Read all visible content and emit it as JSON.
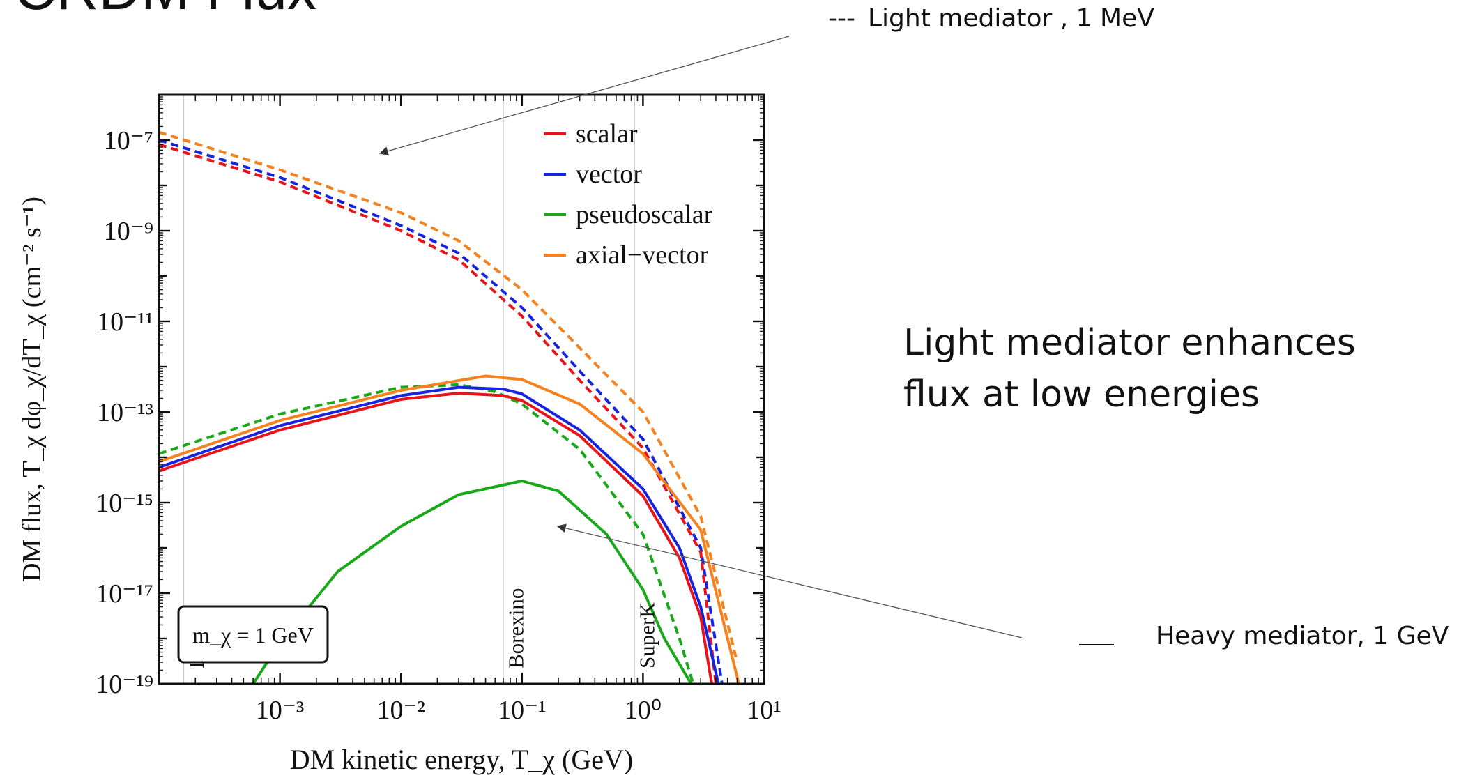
{
  "slide": {
    "title": "CRDM Flux",
    "light_note": {
      "marker": "---",
      "text": "Light mediator , 1 MeV"
    },
    "heavy_note": {
      "text": "Heavy mediator, 1 GeV"
    },
    "callout": [
      "Light mediator enhances",
      "flux at low energies"
    ]
  },
  "chart_data": {
    "type": "line",
    "x_scale": "log",
    "y_scale": "log",
    "xlim": [
      0.0001,
      10
    ],
    "ylim": [
      1e-19,
      1e-06
    ],
    "xlabel": "DM kinetic energy, T_χ (GeV)",
    "ylabel": "DM flux, T_χ dφ_χ/dT_χ (cm⁻² s⁻¹)",
    "x_ticks": [
      {
        "value": 0.001,
        "label": "10⁻³"
      },
      {
        "value": 0.01,
        "label": "10⁻²"
      },
      {
        "value": 0.1,
        "label": "10⁻¹"
      },
      {
        "value": 1,
        "label": "10⁰"
      },
      {
        "value": 10,
        "label": "10¹"
      }
    ],
    "y_ticks": [
      {
        "value": 1e-07,
        "label": "10⁻⁷"
      },
      {
        "value": 1e-09,
        "label": "10⁻⁹"
      },
      {
        "value": 1e-11,
        "label": "10⁻¹¹"
      },
      {
        "value": 1e-13,
        "label": "10⁻¹³"
      },
      {
        "value": 1e-15,
        "label": "10⁻¹⁵"
      },
      {
        "value": 1e-17,
        "label": "10⁻¹⁷"
      },
      {
        "value": 1e-19,
        "label": "10⁻¹⁹"
      }
    ],
    "legend": {
      "position": "top-right",
      "entries": [
        {
          "name": "scalar",
          "color": "#e8141c"
        },
        {
          "name": "vector",
          "color": "#1424e0"
        },
        {
          "name": "pseudoscalar",
          "color": "#18a818"
        },
        {
          "name": "axial−vector",
          "color": "#f5821e"
        }
      ]
    },
    "mass_label": "m_χ = 1 GeV",
    "thresholds": [
      {
        "name": "LZ",
        "x": 0.00016
      },
      {
        "name": "Borexino",
        "x": 0.07
      },
      {
        "name": "SuperK",
        "x": 0.85
      }
    ],
    "series": [
      {
        "mediator": "light",
        "coupling": "axial-vector",
        "color": "#f5821e",
        "dash": true,
        "points": [
          [
            0.0001,
            1.5e-07
          ],
          [
            0.001,
            2.2e-08
          ],
          [
            0.01,
            2.5e-09
          ],
          [
            0.03,
            6e-10
          ],
          [
            0.1,
            5e-11
          ],
          [
            0.3,
            2.6e-12
          ],
          [
            1,
            1e-13
          ],
          [
            3,
            5e-16
          ],
          [
            6,
            3e-19
          ]
        ]
      },
      {
        "mediator": "light",
        "coupling": "vector",
        "color": "#1424e0",
        "dash": true,
        "points": [
          [
            0.0001,
            1e-07
          ],
          [
            0.001,
            1.5e-08
          ],
          [
            0.01,
            1.3e-09
          ],
          [
            0.03,
            3.2e-10
          ],
          [
            0.1,
            2e-11
          ],
          [
            0.3,
            8e-13
          ],
          [
            1,
            2.5e-14
          ],
          [
            3,
            1e-16
          ],
          [
            4.5,
            1e-19
          ]
        ]
      },
      {
        "mediator": "light",
        "coupling": "scalar",
        "color": "#e8141c",
        "dash": true,
        "points": [
          [
            0.0001,
            8e-08
          ],
          [
            0.001,
            1.2e-08
          ],
          [
            0.01,
            1e-09
          ],
          [
            0.03,
            2.3e-10
          ],
          [
            0.1,
            1.3e-11
          ],
          [
            0.3,
            5e-13
          ],
          [
            1,
            1.6e-14
          ],
          [
            3,
            8e-17
          ],
          [
            4,
            1e-19
          ]
        ]
      },
      {
        "mediator": "light",
        "coupling": "pseudoscalar",
        "color": "#18a818",
        "dash": true,
        "points": [
          [
            0.0001,
            1.2e-14
          ],
          [
            0.001,
            9e-14
          ],
          [
            0.01,
            3.5e-13
          ],
          [
            0.03,
            4e-13
          ],
          [
            0.06,
            2.8e-13
          ],
          [
            0.1,
            1.5e-13
          ],
          [
            0.3,
            1.5e-14
          ],
          [
            1,
            2e-16
          ],
          [
            2,
            1e-18
          ],
          [
            2.6,
            1e-19
          ]
        ]
      },
      {
        "mediator": "heavy",
        "coupling": "axial-vector",
        "color": "#f5821e",
        "dash": false,
        "points": [
          [
            0.0001,
            8e-15
          ],
          [
            0.001,
            6.5e-14
          ],
          [
            0.01,
            3e-13
          ],
          [
            0.05,
            6.2e-13
          ],
          [
            0.1,
            5.2e-13
          ],
          [
            0.3,
            1.5e-13
          ],
          [
            1,
            1.2e-14
          ],
          [
            3,
            2.5e-16
          ],
          [
            5,
            1e-18
          ],
          [
            6.2,
            1e-19
          ]
        ]
      },
      {
        "mediator": "heavy",
        "coupling": "vector",
        "color": "#1424e0",
        "dash": false,
        "points": [
          [
            0.0001,
            6e-15
          ],
          [
            0.001,
            5e-14
          ],
          [
            0.01,
            2.3e-13
          ],
          [
            0.03,
            3.5e-13
          ],
          [
            0.07,
            3.2e-13
          ],
          [
            0.1,
            2.5e-13
          ],
          [
            0.3,
            4e-14
          ],
          [
            1,
            2e-15
          ],
          [
            2,
            1e-16
          ],
          [
            3,
            5e-18
          ],
          [
            4.2,
            1e-19
          ]
        ]
      },
      {
        "mediator": "heavy",
        "coupling": "scalar",
        "color": "#e8141c",
        "dash": false,
        "points": [
          [
            0.0001,
            5e-15
          ],
          [
            0.001,
            4e-14
          ],
          [
            0.01,
            1.9e-13
          ],
          [
            0.03,
            2.6e-13
          ],
          [
            0.07,
            2.3e-13
          ],
          [
            0.1,
            1.8e-13
          ],
          [
            0.3,
            3e-14
          ],
          [
            1,
            1.4e-15
          ],
          [
            2,
            6e-17
          ],
          [
            3,
            3e-18
          ],
          [
            3.7,
            1e-19
          ]
        ]
      },
      {
        "mediator": "heavy",
        "coupling": "pseudoscalar",
        "color": "#18a818",
        "dash": false,
        "points": [
          [
            0.0006,
            1e-19
          ],
          [
            0.001,
            8e-19
          ],
          [
            0.003,
            3e-17
          ],
          [
            0.01,
            3e-16
          ],
          [
            0.03,
            1.5e-15
          ],
          [
            0.1,
            3e-15
          ],
          [
            0.2,
            1.8e-15
          ],
          [
            0.5,
            2e-16
          ],
          [
            1,
            1.2e-17
          ],
          [
            1.5,
            1e-18
          ],
          [
            2.5,
            1e-19
          ]
        ]
      }
    ]
  }
}
